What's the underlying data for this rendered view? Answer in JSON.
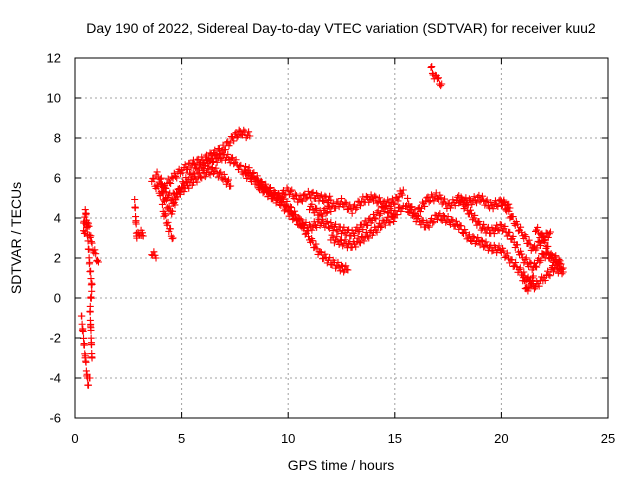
{
  "chart_data": {
    "type": "scatter",
    "title": "Day 190 of 2022, Sidereal Day-to-day VTEC variation (SDTVAR) for receiver kuu2",
    "xlabel": "GPS time / hours",
    "ylabel": "SDTVAR / TECUs",
    "xlim": [
      0,
      25
    ],
    "ylim": [
      -6,
      12
    ],
    "xticks": [
      0,
      5,
      10,
      15,
      20,
      25
    ],
    "yticks": [
      -6,
      -4,
      -2,
      0,
      2,
      4,
      6,
      8,
      10,
      12
    ],
    "grid": true,
    "legend": "none",
    "marker": "+",
    "color": "#ff0000",
    "segments": [
      [
        [
          0.3,
          -0.9
        ],
        [
          0.4,
          -2.0
        ],
        [
          0.5,
          -3.2
        ],
        [
          0.6,
          -4.3
        ],
        [
          0.7,
          -4.0
        ]
      ],
      [
        [
          0.4,
          3.6
        ],
        [
          0.5,
          4.4
        ],
        [
          0.6,
          3.0
        ],
        [
          0.7,
          1.5
        ],
        [
          0.8,
          0.5
        ],
        [
          0.7,
          -0.5
        ],
        [
          0.75,
          -1.8
        ],
        [
          0.8,
          -3.0
        ]
      ],
      [
        [
          0.4,
          3.2
        ],
        [
          0.6,
          3.8
        ],
        [
          0.8,
          2.6
        ],
        [
          1.1,
          1.8
        ]
      ],
      [
        [
          2.8,
          4.9
        ],
        [
          2.9,
          3.0
        ],
        [
          3.1,
          3.4
        ],
        [
          3.2,
          3.1
        ]
      ],
      [
        [
          3.6,
          2.3
        ],
        [
          3.8,
          2.0
        ]
      ],
      [
        [
          3.6,
          6.0
        ],
        [
          3.9,
          5.4
        ],
        [
          4.2,
          5.0
        ],
        [
          4.5,
          4.2
        ],
        [
          4.8,
          5.2
        ],
        [
          5.2,
          5.9
        ],
        [
          5.6,
          6.3
        ],
        [
          6.0,
          6.6
        ],
        [
          6.5,
          6.9
        ],
        [
          7.0,
          7.1
        ],
        [
          7.5,
          6.8
        ],
        [
          8.0,
          6.2
        ],
        [
          8.5,
          5.8
        ],
        [
          9.0,
          5.5
        ],
        [
          9.5,
          5.1
        ],
        [
          10.0,
          4.6
        ],
        [
          10.5,
          3.9
        ],
        [
          11.0,
          3.0
        ],
        [
          11.5,
          2.2
        ],
        [
          12.0,
          1.8
        ],
        [
          12.5,
          1.5
        ],
        [
          12.8,
          1.4
        ]
      ],
      [
        [
          3.8,
          6.2
        ],
        [
          4.2,
          5.6
        ],
        [
          4.6,
          6.0
        ],
        [
          5.0,
          6.4
        ],
        [
          5.5,
          6.7
        ],
        [
          6.0,
          6.9
        ],
        [
          6.5,
          7.2
        ],
        [
          7.0,
          7.5
        ],
        [
          7.5,
          8.1
        ],
        [
          7.8,
          8.3
        ],
        [
          8.2,
          8.1
        ]
      ],
      [
        [
          4.0,
          5.6
        ],
        [
          4.5,
          5.0
        ],
        [
          5.0,
          5.4
        ],
        [
          5.5,
          5.8
        ],
        [
          6.0,
          6.2
        ],
        [
          6.5,
          6.4
        ],
        [
          7.0,
          6.0
        ],
        [
          7.3,
          5.6
        ]
      ],
      [
        [
          4.1,
          4.5
        ],
        [
          4.4,
          3.5
        ],
        [
          4.6,
          3.0
        ]
      ],
      [
        [
          8.0,
          6.5
        ],
        [
          8.5,
          6.0
        ],
        [
          9.0,
          5.3
        ],
        [
          9.5,
          5.0
        ],
        [
          10.0,
          5.4
        ],
        [
          10.5,
          4.9
        ],
        [
          11.0,
          5.2
        ],
        [
          11.5,
          5.0
        ],
        [
          12.0,
          4.9
        ]
      ],
      [
        [
          8.6,
          5.6
        ],
        [
          9.1,
          5.2
        ],
        [
          9.6,
          4.8
        ],
        [
          10.1,
          4.2
        ],
        [
          10.5,
          3.8
        ],
        [
          11.0,
          3.5
        ],
        [
          11.5,
          3.8
        ],
        [
          12.0,
          3.6
        ],
        [
          12.5,
          3.4
        ],
        [
          13.0,
          3.2
        ],
        [
          13.5,
          3.6
        ],
        [
          14.0,
          4.0
        ],
        [
          14.5,
          4.5
        ],
        [
          15.0,
          4.2
        ],
        [
          15.4,
          4.6
        ]
      ],
      [
        [
          11.0,
          4.6
        ],
        [
          11.5,
          4.2
        ],
        [
          12.0,
          4.5
        ],
        [
          12.5,
          4.8
        ],
        [
          13.0,
          4.4
        ],
        [
          13.5,
          4.9
        ],
        [
          14.0,
          5.0
        ],
        [
          14.5,
          4.7
        ],
        [
          15.0,
          4.8
        ],
        [
          15.4,
          5.4
        ]
      ],
      [
        [
          12.0,
          3.0
        ],
        [
          12.5,
          2.8
        ],
        [
          13.0,
          2.6
        ],
        [
          13.5,
          3.0
        ],
        [
          14.0,
          3.3
        ],
        [
          14.5,
          3.8
        ],
        [
          15.0,
          4.0
        ]
      ],
      [
        [
          15.5,
          4.5
        ],
        [
          16.0,
          4.2
        ],
        [
          16.5,
          4.9
        ],
        [
          17.0,
          5.1
        ],
        [
          17.5,
          4.6
        ],
        [
          18.0,
          4.9
        ],
        [
          18.5,
          4.8
        ],
        [
          19.0,
          5.0
        ],
        [
          19.5,
          4.6
        ],
        [
          20.0,
          4.8
        ],
        [
          20.4,
          4.5
        ]
      ],
      [
        [
          15.6,
          4.8
        ],
        [
          16.0,
          4.0
        ],
        [
          16.5,
          3.6
        ],
        [
          17.0,
          4.1
        ],
        [
          17.5,
          3.9
        ],
        [
          18.0,
          3.6
        ],
        [
          18.5,
          3.0
        ],
        [
          19.0,
          2.8
        ],
        [
          19.5,
          2.5
        ],
        [
          20.0,
          2.4
        ],
        [
          20.5,
          1.8
        ],
        [
          21.0,
          1.2
        ],
        [
          21.3,
          0.8
        ],
        [
          21.6,
          0.6
        ],
        [
          22.0,
          1.0
        ],
        [
          22.5,
          1.5
        ],
        [
          22.9,
          1.3
        ]
      ],
      [
        [
          18.0,
          5.0
        ],
        [
          18.5,
          4.3
        ],
        [
          19.0,
          3.6
        ],
        [
          19.5,
          3.3
        ],
        [
          20.0,
          3.6
        ],
        [
          20.5,
          3.0
        ],
        [
          21.0,
          2.0
        ],
        [
          21.5,
          1.5
        ],
        [
          22.0,
          2.2
        ],
        [
          22.5,
          2.0
        ],
        [
          22.8,
          1.7
        ]
      ],
      [
        [
          20.0,
          4.9
        ],
        [
          20.5,
          4.0
        ],
        [
          21.0,
          3.2
        ],
        [
          21.5,
          2.4
        ],
        [
          22.0,
          3.0
        ],
        [
          22.3,
          3.3
        ]
      ],
      [
        [
          21.6,
          3.5
        ],
        [
          22.0,
          2.9
        ],
        [
          22.4,
          1.8
        ],
        [
          22.9,
          1.5
        ]
      ],
      [
        [
          21.0,
          1.0
        ],
        [
          21.2,
          0.4
        ],
        [
          21.5,
          1.1
        ]
      ],
      [
        [
          16.7,
          11.5
        ],
        [
          16.8,
          11.2
        ],
        [
          17.0,
          10.9
        ],
        [
          17.2,
          10.7
        ]
      ]
    ]
  }
}
